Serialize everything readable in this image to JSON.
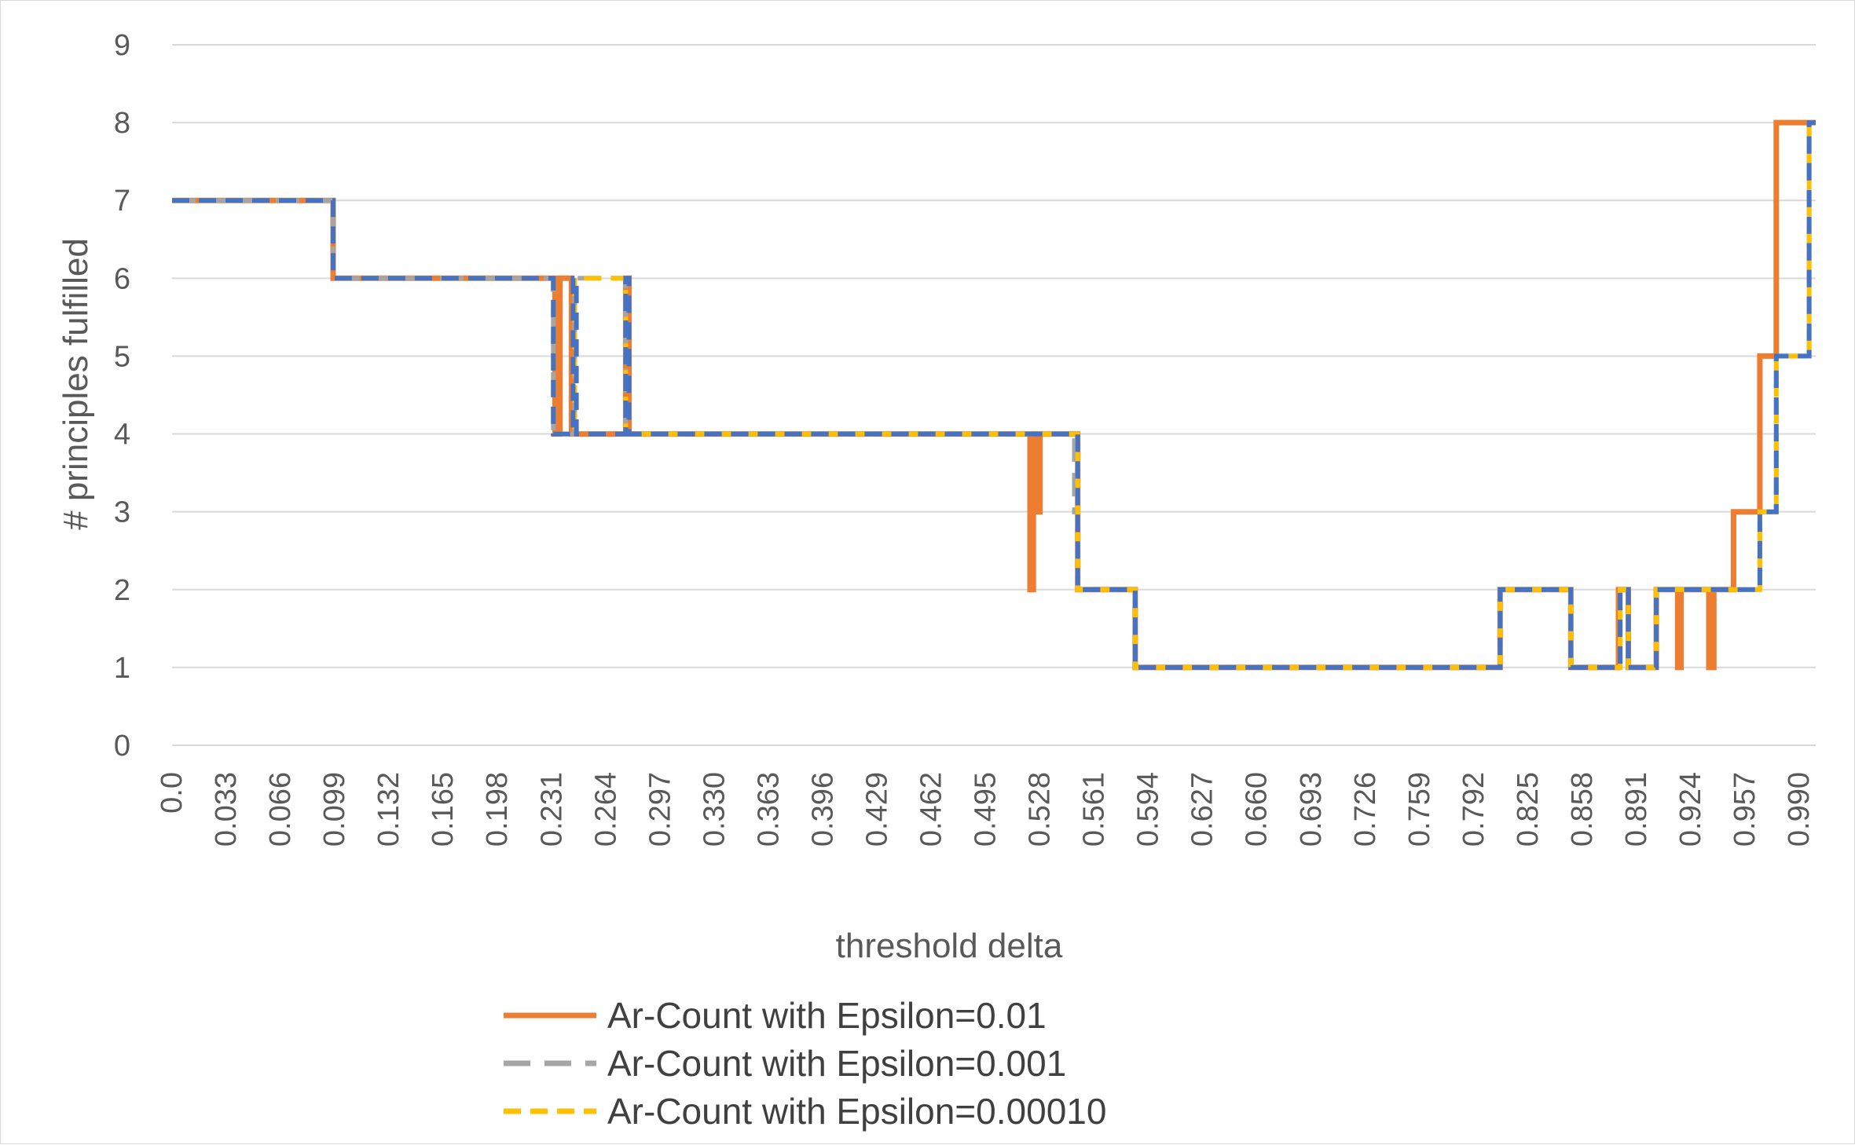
{
  "chart_data": {
    "type": "line",
    "xlabel": "threshold delta",
    "ylabel": "# principles fulfilled",
    "ylim": [
      0,
      9
    ],
    "xlim": [
      0,
      1.0
    ],
    "y_ticks": [
      "0",
      "1",
      "2",
      "3",
      "4",
      "5",
      "6",
      "7",
      "8",
      "9"
    ],
    "x_tick_labels": [
      "0.0",
      "0.033",
      "0.066",
      "0.099",
      "0.132",
      "0.165",
      "0.198",
      "0.231",
      "0.264",
      "0.297",
      "0.330",
      "0.363",
      "0.396",
      "0.429",
      "0.462",
      "0.495",
      "0.528",
      "0.561",
      "0.594",
      "0.627",
      "0.660",
      "0.693",
      "0.726",
      "0.759",
      "0.792",
      "0.825",
      "0.858",
      "0.891",
      "0.924",
      "0.957",
      "0.990"
    ],
    "x_tick_values": [
      0.0,
      0.033,
      0.066,
      0.099,
      0.132,
      0.165,
      0.198,
      0.231,
      0.264,
      0.297,
      0.33,
      0.363,
      0.396,
      0.429,
      0.462,
      0.495,
      0.528,
      0.561,
      0.594,
      0.627,
      0.66,
      0.693,
      0.726,
      0.759,
      0.792,
      0.825,
      0.858,
      0.891,
      0.924,
      0.957,
      0.99
    ],
    "grid": true,
    "legend_position": "bottom",
    "series": [
      {
        "name": "Ar-Count with Epsilon=0.01",
        "color": "#ED7D31",
        "style": "solid",
        "x": [
          0,
          0.098,
          0.098,
          0.233,
          0.233,
          0.236,
          0.236,
          0.243,
          0.243,
          0.245,
          0.245,
          0.276,
          0.276,
          0.278,
          0.278,
          0.522,
          0.522,
          0.524,
          0.524,
          0.526,
          0.526,
          0.528,
          0.528,
          0.551,
          0.551,
          0.586,
          0.586,
          0.808,
          0.808,
          0.851,
          0.851,
          0.88,
          0.88,
          0.886,
          0.886,
          0.903,
          0.903,
          0.916,
          0.916,
          0.918,
          0.918,
          0.935,
          0.935,
          0.938,
          0.938,
          0.95,
          0.95,
          0.966,
          0.966,
          0.976,
          0.976,
          0.996,
          0.996,
          1.0
        ],
        "y": [
          7,
          7,
          6,
          6,
          4,
          4,
          6,
          6,
          4,
          4,
          4,
          4,
          6,
          6,
          4,
          4,
          2,
          2,
          4,
          4,
          3,
          3,
          4,
          4,
          2,
          2,
          1,
          1,
          2,
          2,
          1,
          1,
          2,
          2,
          1,
          1,
          2,
          2,
          1,
          1,
          2,
          2,
          1,
          1,
          2,
          2,
          3,
          3,
          5,
          5,
          8,
          8,
          8,
          8
        ]
      },
      {
        "name": "Ar-Count with Epsilon=0.001",
        "color": "#A5A5A5",
        "style": "dashed",
        "x": [
          0,
          0.098,
          0.098,
          0.232,
          0.232,
          0.245,
          0.245,
          0.276,
          0.276,
          0.278,
          0.278,
          0.549,
          0.549,
          0.551,
          0.551,
          0.586,
          0.586,
          0.808,
          0.808,
          0.851,
          0.851,
          0.881,
          0.881,
          0.886,
          0.886,
          0.903,
          0.903,
          0.966,
          0.966,
          0.976,
          0.976,
          0.996,
          0.996,
          1.0
        ],
        "y": [
          7,
          7,
          6,
          6,
          4,
          4,
          6,
          6,
          4,
          4,
          4,
          4,
          3,
          3,
          2,
          2,
          1,
          1,
          2,
          2,
          1,
          1,
          2,
          2,
          1,
          1,
          2,
          2,
          3,
          3,
          5,
          5,
          8,
          8
        ]
      },
      {
        "name": "Ar-Count with Epsilon=0.00010",
        "color": "#FFC000",
        "style": "dashed",
        "x": [
          0,
          0.098,
          0.098,
          0.232,
          0.232,
          0.245,
          0.245,
          0.276,
          0.276,
          0.278,
          0.278,
          0.549,
          0.549,
          0.551,
          0.551,
          0.586,
          0.586,
          0.808,
          0.808,
          0.851,
          0.851,
          0.881,
          0.881,
          0.886,
          0.886,
          0.903,
          0.903,
          0.966,
          0.966,
          0.976,
          0.976,
          0.996,
          0.996,
          1.0
        ],
        "y": [
          7,
          7,
          6,
          6,
          4,
          4,
          6,
          6,
          4,
          4,
          4,
          4,
          4,
          4,
          2,
          2,
          1,
          1,
          2,
          2,
          1,
          1,
          2,
          2,
          1,
          1,
          2,
          2,
          3,
          3,
          5,
          5,
          8,
          8
        ]
      },
      {
        "color": "#4472C4",
        "style": "dashed",
        "legend": false,
        "x": [
          0,
          0.098,
          0.098,
          0.232,
          0.232,
          0.244,
          0.244,
          0.246,
          0.246,
          0.276,
          0.276,
          0.278,
          0.278,
          0.549,
          0.549,
          0.551,
          0.551,
          0.586,
          0.586,
          0.808,
          0.808,
          0.851,
          0.851,
          0.881,
          0.881,
          0.886,
          0.886,
          0.903,
          0.903,
          0.966,
          0.966,
          0.976,
          0.976,
          0.996,
          0.996,
          1.0
        ],
        "y": [
          7,
          7,
          6,
          6,
          4,
          4,
          6,
          6,
          4,
          4,
          6,
          6,
          4,
          4,
          4,
          4,
          2,
          2,
          1,
          1,
          2,
          2,
          1,
          1,
          2,
          2,
          1,
          1,
          2,
          2,
          3,
          3,
          5,
          5,
          8,
          8
        ]
      }
    ]
  }
}
